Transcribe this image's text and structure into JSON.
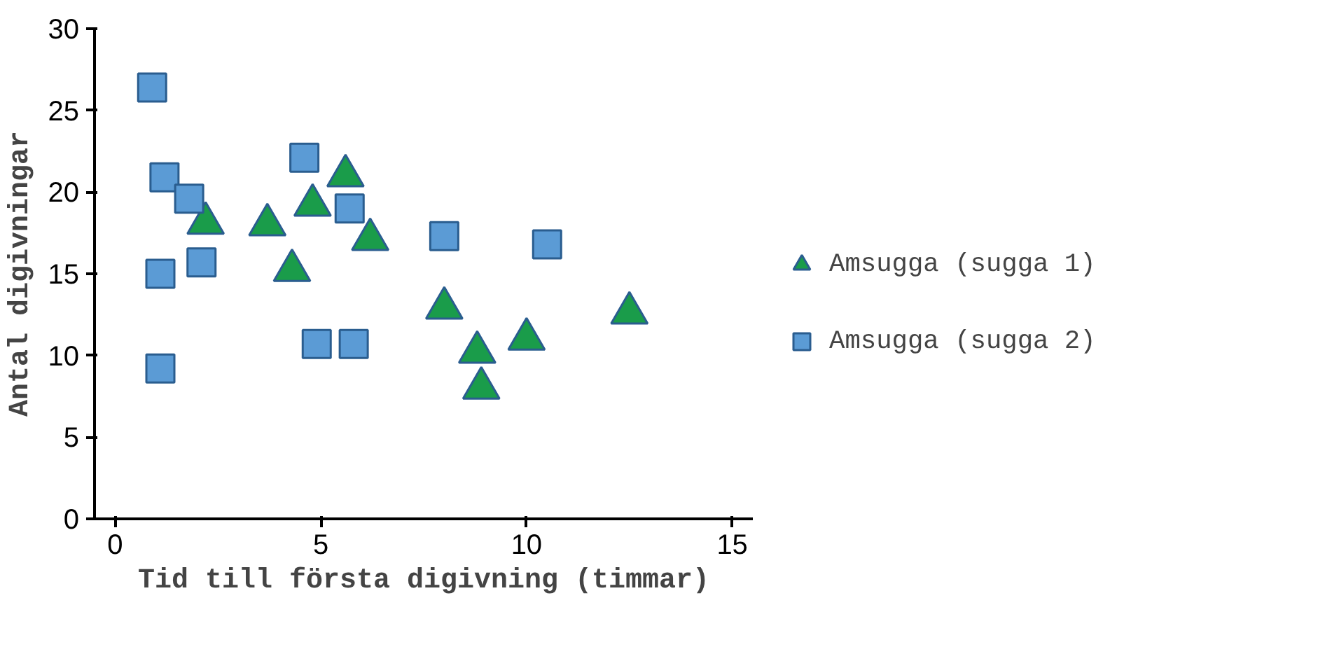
{
  "chart_data": {
    "type": "scatter",
    "xlabel": "Tid till första digivning (timmar)",
    "ylabel": "Antal digivningar",
    "xlim": [
      -0.5,
      15.5
    ],
    "ylim": [
      0,
      30
    ],
    "xticks": [
      0,
      5,
      10,
      15
    ],
    "yticks": [
      0,
      5,
      10,
      15,
      20,
      25,
      30
    ],
    "grid": false,
    "legend": "right",
    "series": [
      {
        "name": "Amsugga (sugga 1)",
        "color": "#1a9c4a",
        "marker": "triangle",
        "x": [
          2.2,
          3.7,
          4.3,
          4.8,
          5.6,
          6.2,
          8.0,
          8.8,
          8.9,
          10.0,
          12.5
        ],
        "values": [
          18.1,
          18.0,
          15.2,
          19.2,
          21.0,
          17.1,
          12.9,
          10.2,
          8.0,
          11.0,
          12.6
        ]
      },
      {
        "name": "Amsugga (sugga 2)",
        "color": "#5b9bd5",
        "marker": "square",
        "x": [
          0.9,
          1.2,
          1.8,
          1.1,
          1.1,
          2.1,
          4.6,
          5.7,
          4.9,
          5.8,
          8.0,
          10.5
        ],
        "values": [
          26.4,
          20.9,
          19.6,
          15.0,
          9.2,
          15.7,
          22.1,
          19.0,
          10.7,
          10.7,
          17.3,
          16.8
        ]
      }
    ]
  }
}
